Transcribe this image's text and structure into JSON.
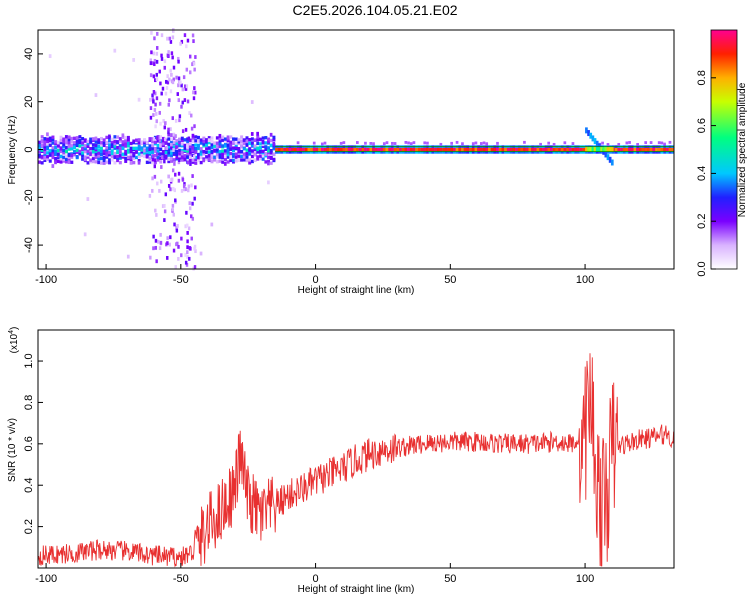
{
  "title": "C2E5.2026.104.05.21.E02",
  "colors": {
    "signal_line": "#e83030",
    "spectrum_core": "#e0205a",
    "reference_line": "#008c00"
  },
  "chart_data": [
    {
      "type": "heatmap",
      "xlabel": "Height of straight line (km)",
      "ylabel": "Frequency (Hz)",
      "xlim": [
        -103,
        133
      ],
      "ylim": [
        -50,
        50
      ],
      "xticks": [
        -100,
        -50,
        0,
        50,
        100
      ],
      "yticks": [
        -40,
        -20,
        0,
        20,
        40
      ],
      "grid": false,
      "colorbar": {
        "label": "Normalized spectral amplitude",
        "range": [
          0,
          1
        ],
        "ticks": [
          "0.0",
          "0.2",
          "0.4",
          "0.6",
          "0.8"
        ],
        "colormap": "rainbow"
      },
      "regions": [
        {
          "x_range": [
            -103,
            -15
          ],
          "freq_half_width": 5,
          "amplitude": 0.35,
          "description_level": "noisy broadband"
        },
        {
          "x_range": [
            -62,
            -45
          ],
          "freq_half_width": 50,
          "amplitude": 0.08,
          "description_level": "scattered"
        },
        {
          "x_range": [
            -15,
            133
          ],
          "freq_half_width": 1,
          "amplitude": 1.0,
          "description_level": "narrow peak"
        },
        {
          "x_range": [
            100,
            110
          ],
          "freq_half_width": 8,
          "amplitude": 0.3,
          "description_level": "burst"
        }
      ]
    },
    {
      "type": "line",
      "xlabel": "Height of straight line (km)",
      "ylabel": "SNR (10 * v/v)",
      "y_multiplier": "(x10",
      "y_multiplier_exp": "4",
      "y_multiplier_close": ")",
      "xlim": [
        -103,
        133
      ],
      "ylim": [
        0,
        1.15
      ],
      "xticks": [
        -100,
        -50,
        0,
        50,
        100
      ],
      "yticks": [
        "0.2",
        "0.4",
        "0.6",
        "0.8",
        "1.0"
      ],
      "grid": false,
      "series": [
        {
          "x": [
            -103,
            -90,
            -80,
            -70,
            -60,
            -50,
            -45,
            -40,
            -35,
            -30,
            -28,
            -25,
            -22,
            -20,
            -15,
            -10,
            -5,
            0,
            5,
            10,
            15,
            20,
            25,
            30,
            40,
            50,
            60,
            70,
            80,
            90,
            95,
            100,
            102,
            104,
            106,
            108,
            110,
            115,
            120,
            125,
            130,
            133
          ],
          "y": [
            0.06,
            0.07,
            0.09,
            0.08,
            0.06,
            0.05,
            0.08,
            0.2,
            0.28,
            0.38,
            0.55,
            0.33,
            0.28,
            0.25,
            0.3,
            0.35,
            0.38,
            0.42,
            0.45,
            0.48,
            0.52,
            0.55,
            0.57,
            0.58,
            0.6,
            0.61,
            0.61,
            0.6,
            0.6,
            0.61,
            0.6,
            0.65,
            0.85,
            0.5,
            0.25,
            0.35,
            0.58,
            0.6,
            0.62,
            0.63,
            0.65,
            0.62
          ]
        }
      ]
    }
  ]
}
